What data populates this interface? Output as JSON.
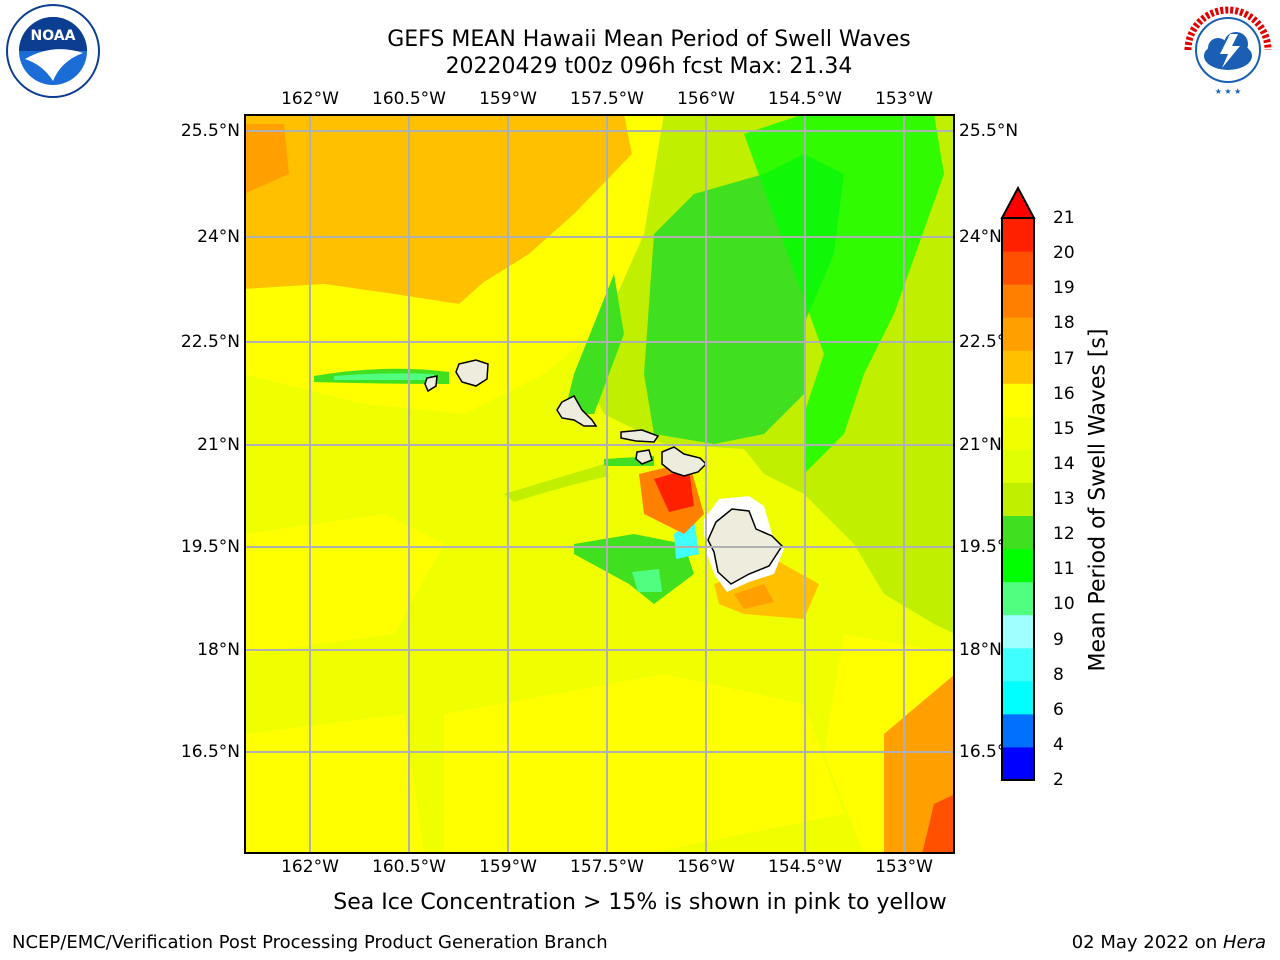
{
  "title": {
    "line1": "GEFS MEAN Hawaii Mean Period of Swell Waves",
    "line2": "20220429 t00z 096h fcst   Max: 21.34"
  },
  "map": {
    "longitude_ticks": [
      "162°W",
      "160.5°W",
      "159°W",
      "157.5°W",
      "156°W",
      "154.5°W",
      "153°W"
    ],
    "latitude_ticks": [
      "25.5°N",
      "24°N",
      "22.5°N",
      "21°N",
      "19.5°N",
      "18°N",
      "16.5°N"
    ],
    "gridlines": true,
    "land_color": "#eeecdc"
  },
  "colorbar": {
    "label": "Mean Period of Swell Waves [s]",
    "ticks": [
      "2",
      "4",
      "6",
      "8",
      "9",
      "10",
      "11",
      "12",
      "13",
      "14",
      "15",
      "16",
      "17",
      "18",
      "19",
      "20",
      "21"
    ],
    "colors": [
      "#0000ff",
      "#0070ff",
      "#00ffff",
      "#40ffff",
      "#a0ffff",
      "#50ff80",
      "#00ff00",
      "#40e020",
      "#c0f000",
      "#e0ff00",
      "#f0ff00",
      "#ffff00",
      "#ffc000",
      "#ffa000",
      "#ff8000",
      "#ff5000",
      "#ff2000"
    ],
    "extend_color": "#ff0000"
  },
  "footnote": "Sea Ice Concentration > 15% is shown in pink to yellow",
  "credit": "NCEP/EMC/Verification Post Processing Product Generation Branch",
  "date": {
    "text": "02 May 2022 on ",
    "machine": "Hera"
  },
  "logos": {
    "left": "NOAA",
    "right_top": "NATIONAL WEATHER SERVICE"
  }
}
